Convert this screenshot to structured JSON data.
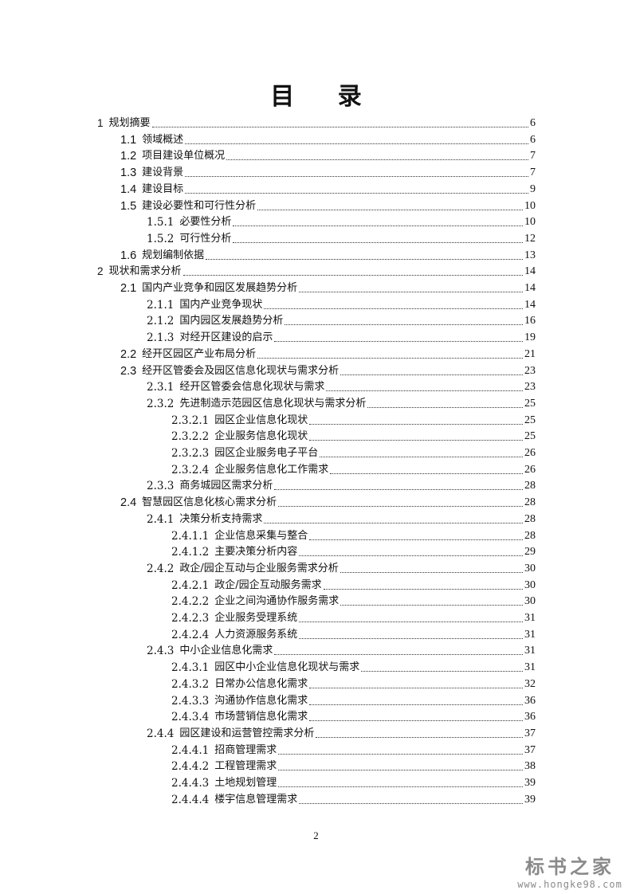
{
  "heading": "目 录",
  "toc": [
    {
      "level": 1,
      "num": "1",
      "title": "规划摘要",
      "page": "6"
    },
    {
      "level": 2,
      "num": "1.1",
      "title": "领域概述",
      "page": "6"
    },
    {
      "level": 2,
      "num": "1.2",
      "title": "项目建设单位概况",
      "page": "7"
    },
    {
      "level": 2,
      "num": "1.3",
      "title": "建设背景",
      "page": "7"
    },
    {
      "level": 2,
      "num": "1.4",
      "title": "建设目标",
      "page": "9"
    },
    {
      "level": 2,
      "num": "1.5",
      "title": "建设必要性和可行性分析",
      "page": "10"
    },
    {
      "level": 3,
      "num": "1.5.1",
      "title": "必要性分析",
      "page": "10"
    },
    {
      "level": 3,
      "num": "1.5.2",
      "title": "可行性分析",
      "page": "12"
    },
    {
      "level": 2,
      "num": "1.6",
      "title": "规划编制依据",
      "page": "13"
    },
    {
      "level": 1,
      "num": "2",
      "title": "现状和需求分析",
      "page": "14"
    },
    {
      "level": 2,
      "num": "2.1",
      "title": "国内产业竞争和园区发展趋势分析",
      "page": "14"
    },
    {
      "level": 3,
      "num": "2.1.1",
      "title": "国内产业竞争现状",
      "page": "14"
    },
    {
      "level": 3,
      "num": "2.1.2",
      "title": "国内园区发展趋势分析",
      "page": "16"
    },
    {
      "level": 3,
      "num": "2.1.3",
      "title": "对经开区建设的启示",
      "page": "19"
    },
    {
      "level": 2,
      "num": "2.2",
      "title": "经开区园区产业布局分析",
      "page": "21"
    },
    {
      "level": 2,
      "num": "2.3",
      "title": "经开区管委会及园区信息化现状与需求分析",
      "page": "23"
    },
    {
      "level": 3,
      "num": "2.3.1",
      "title": "经开区管委会信息化现状与需求",
      "page": "23"
    },
    {
      "level": 3,
      "num": "2.3.2",
      "title": "先进制造示范园区信息化现状与需求分析",
      "page": "25"
    },
    {
      "level": 4,
      "num": "2.3.2.1",
      "title": "园区企业信息化现状",
      "page": "25"
    },
    {
      "level": 4,
      "num": "2.3.2.2",
      "title": "企业服务信息化现状",
      "page": "25"
    },
    {
      "level": 4,
      "num": "2.3.2.3",
      "title": "园区企业服务电子平台",
      "page": "26"
    },
    {
      "level": 4,
      "num": "2.3.2.4",
      "title": "企业服务信息化工作需求",
      "page": "26"
    },
    {
      "level": 3,
      "num": "2.3.3",
      "title": "商务城园区需求分析",
      "page": "28"
    },
    {
      "level": 2,
      "num": "2.4",
      "title": "智慧园区信息化核心需求分析",
      "page": "28"
    },
    {
      "level": 3,
      "num": "2.4.1",
      "title": "决策分析支持需求",
      "page": "28"
    },
    {
      "level": 4,
      "num": "2.4.1.1",
      "title": "企业信息采集与整合",
      "page": "28"
    },
    {
      "level": 4,
      "num": "2.4.1.2",
      "title": "主要决策分析内容",
      "page": "29"
    },
    {
      "level": 3,
      "num": "2.4.2",
      "title": "政企/园企互动与企业服务需求分析",
      "page": "30"
    },
    {
      "level": 4,
      "num": "2.4.2.1",
      "title": "政企/园企互动服务需求",
      "page": "30"
    },
    {
      "level": 4,
      "num": "2.4.2.2",
      "title": "企业之间沟通协作服务需求",
      "page": "30"
    },
    {
      "level": 4,
      "num": "2.4.2.3",
      "title": "企业服务受理系统",
      "page": "31"
    },
    {
      "level": 4,
      "num": "2.4.2.4",
      "title": "人力资源服务系统",
      "page": "31"
    },
    {
      "level": 3,
      "num": "2.4.3",
      "title": "中小企业信息化需求",
      "page": "31"
    },
    {
      "level": 4,
      "num": "2.4.3.1",
      "title": "园区中小企业信息化现状与需求",
      "page": "31"
    },
    {
      "level": 4,
      "num": "2.4.3.2",
      "title": "日常办公信息化需求",
      "page": "32"
    },
    {
      "level": 4,
      "num": "2.4.3.3",
      "title": "沟通协作信息化需求",
      "page": "36"
    },
    {
      "level": 4,
      "num": "2.4.3.4",
      "title": "市场营销信息化需求",
      "page": "36"
    },
    {
      "level": 3,
      "num": "2.4.4",
      "title": "园区建设和运营管控需求分析",
      "page": "37"
    },
    {
      "level": 4,
      "num": "2.4.4.1",
      "title": "招商管理需求",
      "page": "37"
    },
    {
      "level": 4,
      "num": "2.4.4.2",
      "title": "工程管理需求",
      "page": "38"
    },
    {
      "level": 4,
      "num": "2.4.4.3",
      "title": "土地规划管理",
      "page": "39"
    },
    {
      "level": 4,
      "num": "2.4.4.4",
      "title": "楼宇信息管理需求",
      "page": "39"
    }
  ],
  "page_number": "2",
  "watermark": {
    "logo_text": "标书之家",
    "url": "www.hongke98.com"
  }
}
